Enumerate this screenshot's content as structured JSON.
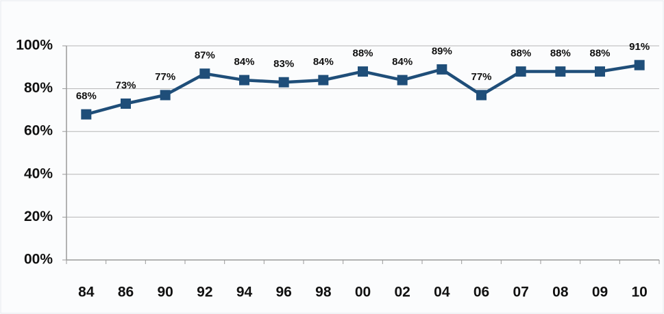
{
  "chart_data": {
    "type": "line",
    "categories": [
      "84",
      "86",
      "90",
      "92",
      "94",
      "96",
      "98",
      "00",
      "02",
      "04",
      "06",
      "07",
      "08",
      "09",
      "10"
    ],
    "values": [
      68,
      73,
      77,
      87,
      84,
      83,
      84,
      88,
      84,
      89,
      77,
      88,
      88,
      88,
      91
    ],
    "value_labels": [
      "68%",
      "73%",
      "77%",
      "87%",
      "84%",
      "83%",
      "84%",
      "88%",
      "84%",
      "89%",
      "77%",
      "88%",
      "88%",
      "88%",
      "91%"
    ],
    "color": "#1f4e79",
    "ylim": [
      0,
      100
    ],
    "yticks": [
      {
        "value": 0,
        "label": "00%"
      },
      {
        "value": 20,
        "label": "20%"
      },
      {
        "value": 40,
        "label": "40%"
      },
      {
        "value": 60,
        "label": "60%"
      },
      {
        "value": 80,
        "label": "80%"
      },
      {
        "value": 100,
        "label": "100%"
      }
    ],
    "grid": true
  }
}
